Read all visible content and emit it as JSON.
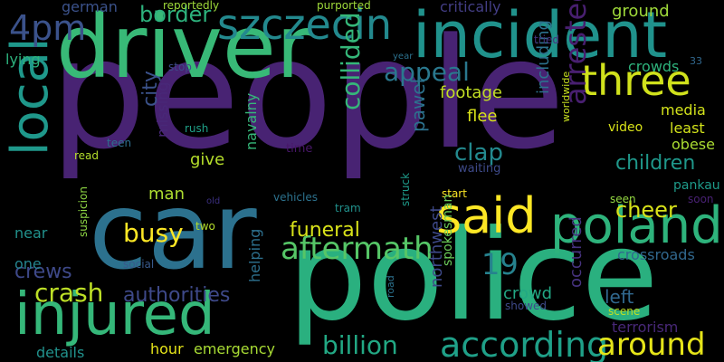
{
  "words": [
    {
      "text": "people",
      "color": "#482373",
      "vertical": false
    },
    {
      "text": "police",
      "color": "#2ab07f",
      "vertical": false
    },
    {
      "text": "car",
      "color": "#2c718e",
      "vertical": false
    },
    {
      "text": "driver",
      "color": "#38b977",
      "vertical": false
    },
    {
      "text": "incident",
      "color": "#20928c",
      "vertical": false
    },
    {
      "text": "injured",
      "color": "#35b779",
      "vertical": false
    },
    {
      "text": "szczecin",
      "color": "#23898e",
      "vertical": false
    },
    {
      "text": "local",
      "color": "#1f988b",
      "vertical": true
    },
    {
      "text": "poland",
      "color": "#2eb37c",
      "vertical": false
    },
    {
      "text": "said",
      "color": "#fde725",
      "vertical": false
    },
    {
      "text": "three",
      "color": "#d0e11c",
      "vertical": false
    },
    {
      "text": "according",
      "color": "#1fa088",
      "vertical": false
    },
    {
      "text": "aftermath",
      "color": "#56c667",
      "vertical": false
    },
    {
      "text": "4pm",
      "color": "#3b528b",
      "vertical": false
    },
    {
      "text": "arrested",
      "color": "#481f70",
      "vertical": true
    },
    {
      "text": "appeal",
      "color": "#2a788e",
      "vertical": false
    },
    {
      "text": "busy",
      "color": "#fde725",
      "vertical": false
    },
    {
      "text": "around",
      "color": "#e5e419",
      "vertical": false
    },
    {
      "text": "crash",
      "color": "#bddf26",
      "vertical": false
    },
    {
      "text": "19",
      "color": "#26828e",
      "vertical": false
    },
    {
      "text": "authorities",
      "color": "#3e4989",
      "vertical": false
    },
    {
      "text": "billion",
      "color": "#22a884",
      "vertical": false
    },
    {
      "text": "collided",
      "color": "#35b779",
      "vertical": true
    },
    {
      "text": "clap",
      "color": "#23898e",
      "vertical": false
    },
    {
      "text": "cheer",
      "color": "#d8e219",
      "vertical": false
    },
    {
      "text": "children",
      "color": "#1f988b",
      "vertical": false
    },
    {
      "text": "border",
      "color": "#2db27d",
      "vertical": false
    },
    {
      "text": "crews",
      "color": "#3e4989",
      "vertical": false
    },
    {
      "text": "funeral",
      "color": "#d8e219",
      "vertical": false
    },
    {
      "text": "crowd",
      "color": "#22a884",
      "vertical": false
    },
    {
      "text": "crowds",
      "color": "#2eb37c",
      "vertical": false
    },
    {
      "text": "footage",
      "color": "#c2df23",
      "vertical": false
    },
    {
      "text": "flee",
      "color": "#d8e219",
      "vertical": false
    },
    {
      "text": "ground",
      "color": "#9fda3a",
      "vertical": false
    },
    {
      "text": "hour",
      "color": "#e5e419",
      "vertical": false
    },
    {
      "text": "emergency",
      "color": "#a8db34",
      "vertical": false
    },
    {
      "text": "details",
      "color": "#21918c",
      "vertical": false
    },
    {
      "text": "man",
      "color": "#addc30",
      "vertical": false
    },
    {
      "text": "give",
      "color": "#b5de2b",
      "vertical": false
    },
    {
      "text": "city",
      "color": "#3b528b",
      "vertical": true
    },
    {
      "text": "crossroads",
      "color": "#31688e",
      "vertical": false
    },
    {
      "text": "pawel",
      "color": "#2c728e",
      "vertical": true
    },
    {
      "text": "including",
      "color": "#2c728e",
      "vertical": true
    },
    {
      "text": "occurred",
      "color": "#46327e",
      "vertical": true
    },
    {
      "text": "northwest",
      "color": "#3e4989",
      "vertical": true
    },
    {
      "text": "helping",
      "color": "#2d708e",
      "vertical": true
    },
    {
      "text": "navalny",
      "color": "#35b779",
      "vertical": true
    },
    {
      "text": "near",
      "color": "#21918c",
      "vertical": false
    },
    {
      "text": "one",
      "color": "#25848e",
      "vertical": false
    },
    {
      "text": "left",
      "color": "#31688e",
      "vertical": false
    },
    {
      "text": "media",
      "color": "#d2e21b",
      "vertical": false
    },
    {
      "text": "least",
      "color": "#d2e21b",
      "vertical": false
    },
    {
      "text": "obese",
      "color": "#aadc32",
      "vertical": false
    },
    {
      "text": "pankau",
      "color": "#1e9b8a",
      "vertical": false
    },
    {
      "text": "lying",
      "color": "#2db27d",
      "vertical": false
    },
    {
      "text": "missing",
      "color": "#482878",
      "vertical": true
    },
    {
      "text": "video",
      "color": "#d8e219",
      "vertical": false
    },
    {
      "text": "scene",
      "color": "#bddf26",
      "vertical": false
    },
    {
      "text": "terrorism",
      "color": "#482878",
      "vertical": false
    },
    {
      "text": "german",
      "color": "#3b528b",
      "vertical": false
    },
    {
      "text": "reportedly",
      "color": "#9fda3a",
      "vertical": false
    },
    {
      "text": "purported",
      "color": "#9fda3a",
      "vertical": false
    },
    {
      "text": "critically",
      "color": "#433e85",
      "vertical": false
    },
    {
      "text": "tried",
      "color": "#46327e",
      "vertical": false
    },
    {
      "text": "rush",
      "color": "#1fa188",
      "vertical": false
    },
    {
      "text": "teen",
      "color": "#2e6e8e",
      "vertical": false
    },
    {
      "text": "read",
      "color": "#b5de2b",
      "vertical": false
    },
    {
      "text": "stop",
      "color": "#3e4a89",
      "vertical": false
    },
    {
      "text": "year",
      "color": "#2c728e",
      "vertical": false
    },
    {
      "text": "33",
      "color": "#31688e",
      "vertical": false
    },
    {
      "text": "time",
      "color": "#481769",
      "vertical": false
    },
    {
      "text": "waiting",
      "color": "#3e4a89",
      "vertical": false
    },
    {
      "text": "worldwide",
      "color": "#c8e020",
      "vertical": true
    },
    {
      "text": "start",
      "color": "#fde725",
      "vertical": false
    },
    {
      "text": "seen",
      "color": "#93d741",
      "vertical": false
    },
    {
      "text": "soon",
      "color": "#482173",
      "vertical": false
    },
    {
      "text": "old",
      "color": "#3b2f80",
      "vertical": false
    },
    {
      "text": "vehicles",
      "color": "#2c728e",
      "vertical": false
    },
    {
      "text": "tram",
      "color": "#21918c",
      "vertical": false
    },
    {
      "text": "two",
      "color": "#b5de2b",
      "vertical": false
    },
    {
      "text": "struck",
      "color": "#1e9b8a",
      "vertical": true
    },
    {
      "text": "social",
      "color": "#38598c",
      "vertical": false
    },
    {
      "text": "suspicion",
      "color": "#8fd744",
      "vertical": true
    },
    {
      "text": "road",
      "color": "#2c728e",
      "vertical": true
    },
    {
      "text": "spokesman",
      "color": "#6ccd5a",
      "vertical": true
    },
    {
      "text": "showed",
      "color": "#3e4989",
      "vertical": false
    }
  ]
}
